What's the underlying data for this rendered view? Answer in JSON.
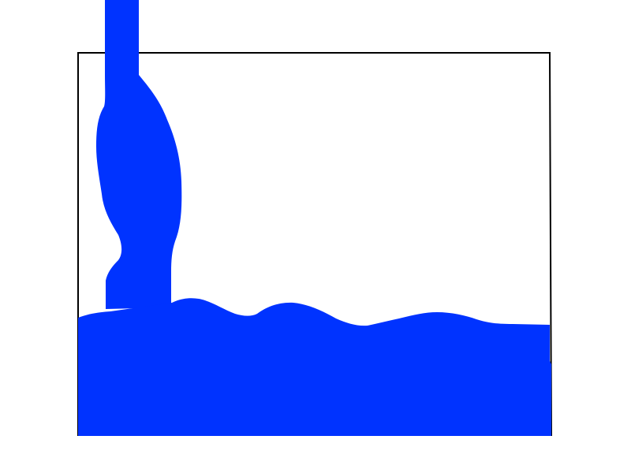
{
  "colors": {
    "background": "#ffffff",
    "container_outline": "#000000",
    "water": "#0033ff"
  },
  "scene": {
    "description_icon": "water-pour-icon",
    "pour_stream": "water-stream",
    "container": "tank-outline",
    "water_body": "water-pool"
  }
}
